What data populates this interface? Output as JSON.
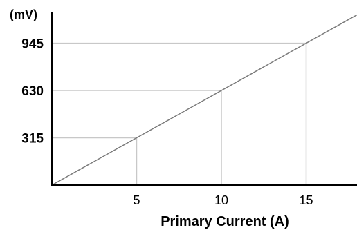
{
  "chart_data": {
    "type": "line",
    "title": "",
    "xlabel": "Primary Current  (A)",
    "ylabel": "(mV)",
    "xlim": [
      0,
      18
    ],
    "ylim": [
      0,
      1150
    ],
    "x_ticks": [
      5,
      10,
      15
    ],
    "x_tick_labels": [
      "5",
      "10",
      "15"
    ],
    "y_ticks": [
      315,
      630,
      945
    ],
    "y_tick_labels": [
      "315",
      "630",
      "945"
    ],
    "grid": "reference lines at labeled points",
    "series": [
      {
        "x": [
          0,
          18
        ],
        "y": [
          0,
          1134
        ]
      }
    ],
    "highlight_points": [
      {
        "x": 5,
        "y": 315
      },
      {
        "x": 10,
        "y": 630
      },
      {
        "x": 15,
        "y": 945
      }
    ],
    "colors": {
      "axis": "#000000",
      "line": "#7a7a7a",
      "guide": "#c8c8c8"
    }
  }
}
